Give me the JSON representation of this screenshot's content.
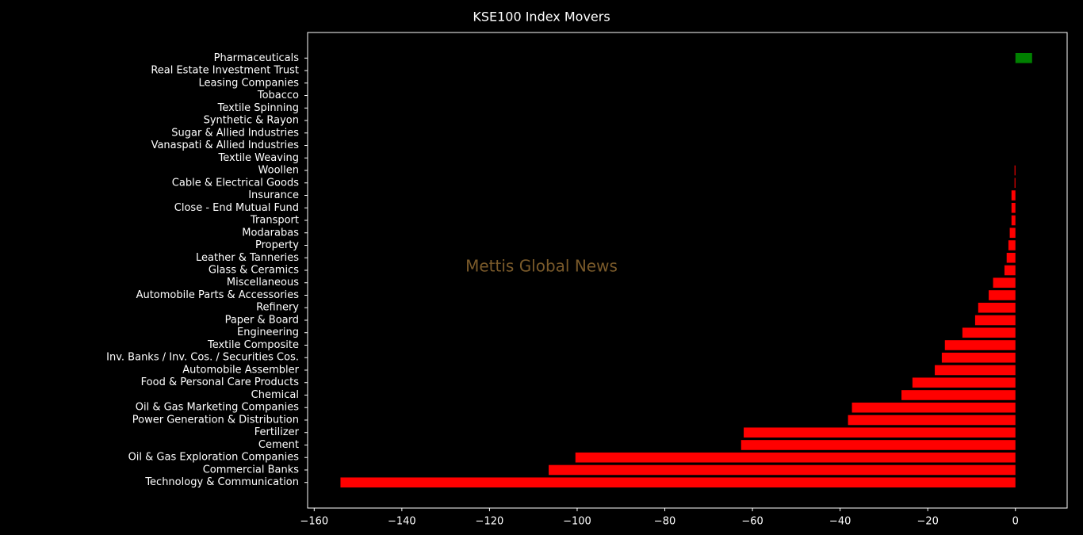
{
  "chart_data": {
    "type": "barh",
    "title": "KSE100 Index Movers",
    "watermark": "Mettis Global News",
    "categories": [
      "Technology & Communication",
      "Commercial Banks",
      "Oil & Gas Exploration Companies",
      "Cement",
      "Fertilizer",
      "Power Generation & Distribution",
      "Oil & Gas Marketing Companies",
      "Chemical",
      "Food & Personal Care Products",
      "Automobile Assembler",
      "Inv. Banks / Inv. Cos. / Securities Cos.",
      "Textile Composite",
      "Engineering",
      "Paper & Board",
      "Refinery",
      "Automobile Parts & Accessories",
      "Miscellaneous",
      "Glass & Ceramics",
      "Leather & Tanneries",
      "Property",
      "Modarabas",
      "Transport",
      "Close - End Mutual Fund",
      "Insurance",
      "Cable & Electrical Goods",
      "Woollen",
      "Textile Weaving",
      "Vanaspati & Allied Industries",
      "Sugar & Allied Industries",
      "Synthetic & Rayon",
      "Textile Spinning",
      "Tobacco",
      "Leasing Companies",
      "Real Estate Investment Trust",
      "Pharmaceuticals"
    ],
    "values": [
      -154,
      -106.5,
      -100.4,
      -62.6,
      -62.0,
      -38.2,
      -37.3,
      -26.0,
      -23.5,
      -18.4,
      -16.8,
      -16.1,
      -12.1,
      -9.2,
      -8.5,
      -6.1,
      -5.1,
      -2.5,
      -2.0,
      -1.6,
      -1.3,
      -0.9,
      -0.9,
      -0.9,
      -0.2,
      -0.2,
      0,
      0,
      0,
      0,
      0,
      0,
      0,
      0,
      3.8
    ],
    "positive_color": "#008000",
    "negative_color": "#ff0000",
    "xlim": [
      -161.5,
      11.8
    ],
    "xticks": [
      {
        "value": -160,
        "label": "−160"
      },
      {
        "value": -140,
        "label": "−140"
      },
      {
        "value": -120,
        "label": "−120"
      },
      {
        "value": -100,
        "label": "−100"
      },
      {
        "value": -80,
        "label": "−80"
      },
      {
        "value": -60,
        "label": "−60"
      },
      {
        "value": -40,
        "label": "−40"
      },
      {
        "value": -20,
        "label": "−20"
      },
      0
    ]
  }
}
